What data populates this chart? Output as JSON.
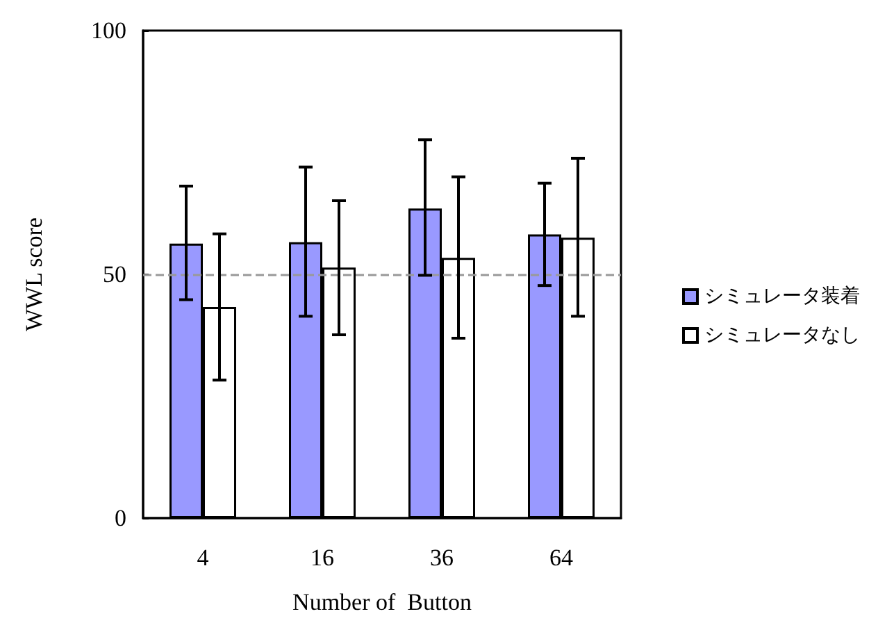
{
  "chart_data": {
    "type": "bar",
    "xlabel": "Number of  Button",
    "ylabel": "WWL score",
    "categories": [
      "4",
      "16",
      "36",
      "64"
    ],
    "series": [
      {
        "name": "シミュレータ装着",
        "color": "#9999ff",
        "values": [
          56.3,
          56.6,
          63.5,
          58.2
        ],
        "errors": [
          [
            44.8,
            68.1
          ],
          [
            41.4,
            72.0
          ],
          [
            49.8,
            77.6
          ],
          [
            47.7,
            68.7
          ]
        ]
      },
      {
        "name": "シミュレータなし",
        "color": "#ffffff",
        "values": [
          43.3,
          51.4,
          53.4,
          57.5
        ],
        "errors": [
          [
            28.3,
            58.3
          ],
          [
            37.6,
            65.1
          ],
          [
            36.9,
            70.0
          ],
          [
            41.4,
            73.8
          ]
        ]
      }
    ],
    "ylim": [
      0,
      100
    ],
    "yticks": [
      0,
      50,
      100
    ],
    "grid": false,
    "legend": "right",
    "ref_lines": [
      {
        "axis": "y",
        "value": 50,
        "color": "#999999",
        "line_style": "dashed"
      }
    ]
  }
}
